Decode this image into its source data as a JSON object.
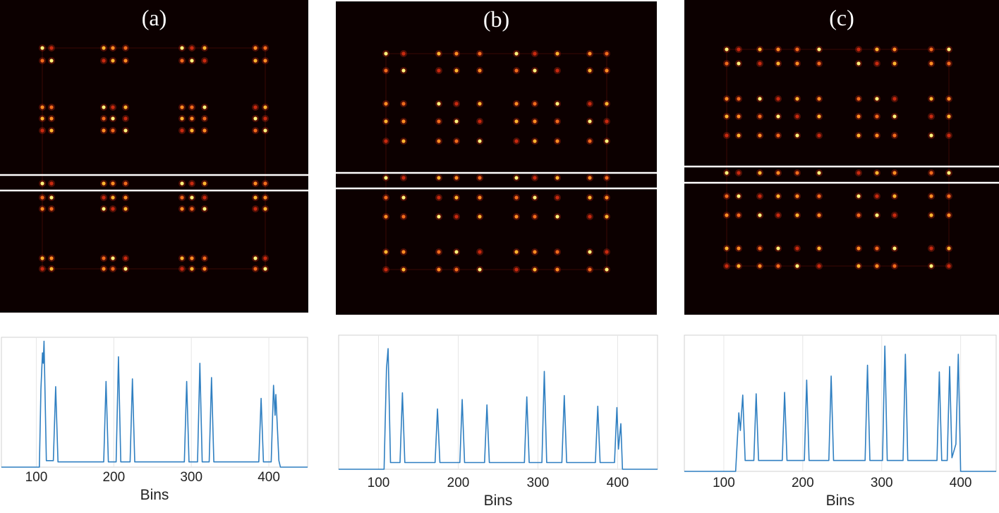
{
  "panels": [
    {
      "label": "(a)",
      "chart_data": {
        "type": "line",
        "xlabel": "Bins",
        "xlim": [
          55,
          450
        ],
        "ylim": [
          0,
          1
        ],
        "xticks": [
          100,
          200,
          300,
          400
        ],
        "grid": true,
        "color": "#2f7fc1",
        "x": [
          55,
          104,
          106,
          108,
          109,
          110,
          113,
          122,
          125,
          128,
          187,
          190,
          193,
          203,
          206,
          209,
          221,
          224,
          227,
          291,
          294,
          297,
          308,
          311,
          314,
          323,
          326,
          329,
          387,
          390,
          393,
          403,
          406,
          408,
          409,
          413,
          415,
          450
        ],
        "values": [
          0,
          0,
          0.6,
          0.88,
          0.8,
          0.97,
          0.05,
          0.05,
          0.62,
          0.04,
          0.04,
          0.66,
          0.04,
          0.04,
          0.85,
          0.04,
          0.04,
          0.68,
          0.04,
          0.04,
          0.66,
          0.04,
          0.04,
          0.8,
          0.04,
          0.04,
          0.69,
          0.04,
          0.04,
          0.53,
          0.04,
          0.04,
          0.63,
          0.4,
          0.56,
          0.05,
          0,
          0
        ]
      }
    },
    {
      "label": "(b)",
      "chart_data": {
        "type": "line",
        "xlabel": "Bins",
        "xlim": [
          50,
          450
        ],
        "ylim": [
          0,
          1
        ],
        "xticks": [
          100,
          200,
          300,
          400
        ],
        "grid": true,
        "color": "#2f7fc1",
        "x": [
          50,
          107,
          110,
          112,
          115,
          127,
          130,
          133,
          171,
          174,
          177,
          202,
          205,
          208,
          233,
          236,
          239,
          283,
          286,
          289,
          305,
          308,
          311,
          330,
          333,
          336,
          372,
          375,
          378,
          396,
          399,
          401,
          404,
          406,
          450
        ],
        "values": [
          0,
          0,
          0.75,
          0.9,
          0.05,
          0.05,
          0.57,
          0.05,
          0.05,
          0.45,
          0.05,
          0.05,
          0.52,
          0.05,
          0.05,
          0.48,
          0.05,
          0.05,
          0.54,
          0.05,
          0.05,
          0.73,
          0.05,
          0.05,
          0.55,
          0.05,
          0.05,
          0.47,
          0.05,
          0.05,
          0.46,
          0.15,
          0.34,
          0,
          0
        ]
      }
    },
    {
      "label": "(c)",
      "chart_data": {
        "type": "line",
        "xlabel": "Bins",
        "xlim": [
          50,
          445
        ],
        "ylim": [
          0,
          1
        ],
        "xticks": [
          100,
          200,
          300,
          400
        ],
        "grid": true,
        "color": "#2f7fc1",
        "x": [
          50,
          115,
          119,
          121,
          124,
          127,
          138,
          141,
          144,
          174,
          177,
          180,
          202,
          205,
          208,
          233,
          236,
          239,
          279,
          282,
          285,
          301,
          304,
          307,
          327,
          330,
          333,
          370,
          373,
          376,
          383,
          386,
          389,
          394,
          397,
          400,
          445
        ],
        "values": [
          0,
          0,
          0.43,
          0.3,
          0.56,
          0.08,
          0.08,
          0.57,
          0.08,
          0.08,
          0.58,
          0.08,
          0.08,
          0.67,
          0.08,
          0.08,
          0.7,
          0.08,
          0.08,
          0.78,
          0.08,
          0.08,
          0.92,
          0.08,
          0.08,
          0.86,
          0.08,
          0.08,
          0.73,
          0.08,
          0.08,
          0.77,
          0.1,
          0.2,
          0.86,
          0,
          0
        ]
      }
    }
  ]
}
